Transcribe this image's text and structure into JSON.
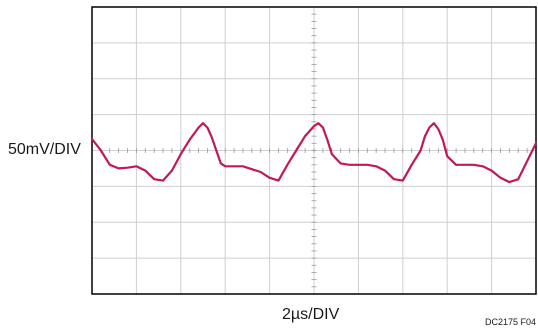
{
  "chart_data": {
    "type": "line",
    "title": "",
    "xlabel": "2µs/DIV",
    "ylabel": "50mV/DIV",
    "figure_id": "DC2175 F04",
    "grid": true,
    "x_divisions": 10,
    "y_divisions": 8,
    "x_unit": "µs",
    "y_unit": "mV",
    "xlim": [
      0,
      20
    ],
    "ylim": [
      -200,
      200
    ],
    "trace_color": "#c2185b",
    "grid_color": "#cfcfcf",
    "series": [
      {
        "x": [
          0.0,
          0.4,
          0.8,
          1.2,
          1.6,
          2.0,
          2.4,
          2.8,
          3.2,
          3.6,
          4.0,
          4.4,
          4.8,
          5.0,
          5.2,
          5.4,
          5.6,
          5.8,
          6.0,
          6.4,
          6.8,
          7.2,
          7.6,
          8.0,
          8.4,
          8.8,
          9.2,
          9.6,
          10.0,
          10.2,
          10.4,
          10.6,
          10.8,
          11.2,
          11.6,
          12.0,
          12.4,
          12.8,
          13.2,
          13.6,
          14.0,
          14.4,
          14.8,
          15.0,
          15.2,
          15.4,
          15.6,
          15.8,
          16.0,
          16.4,
          16.8,
          17.2,
          17.6,
          18.0,
          18.4,
          18.8,
          19.2,
          19.6,
          20.0
        ],
        "y": [
          16,
          0,
          -20,
          -25,
          -24,
          -22,
          -28,
          -40,
          -42,
          -28,
          -5,
          15,
          32,
          38,
          32,
          18,
          0,
          -18,
          -22,
          -22,
          -22,
          -26,
          -30,
          -38,
          -42,
          -20,
          0,
          20,
          34,
          38,
          32,
          15,
          -5,
          -18,
          -20,
          -20,
          -20,
          -22,
          -28,
          -40,
          -42,
          -20,
          0,
          20,
          32,
          38,
          30,
          15,
          -8,
          -20,
          -20,
          -20,
          -22,
          -28,
          -38,
          -44,
          -40,
          -15,
          10
        ]
      }
    ]
  }
}
